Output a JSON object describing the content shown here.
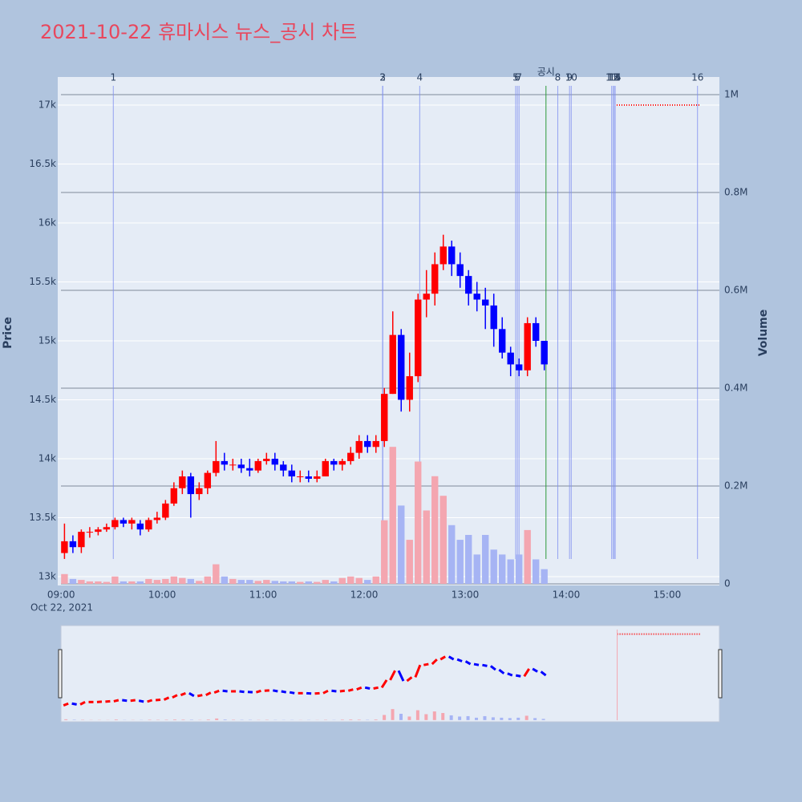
{
  "chart_data": {
    "type": "candlestick",
    "title": "2021-10-22 휴마시스 뉴스_공시 차트",
    "y_label": "Price",
    "y2_label": "Volume",
    "x_date_label": "Oct 22, 2021",
    "xlim": [
      "08:58",
      "15:31"
    ],
    "xticks": [
      "09:00",
      "10:00",
      "11:00",
      "12:00",
      "13:00",
      "14:00",
      "15:00"
    ],
    "ylim": [
      12925,
      17238
    ],
    "yticks": [
      {
        "value": 13000,
        "label": "13k"
      },
      {
        "value": 13500,
        "label": "13.5k"
      },
      {
        "value": 14000,
        "label": "14k"
      },
      {
        "value": 14500,
        "label": "14.5k"
      },
      {
        "value": 15000,
        "label": "15k"
      },
      {
        "value": 15500,
        "label": "15.5k"
      },
      {
        "value": 16000,
        "label": "16k"
      },
      {
        "value": 16500,
        "label": "16.5k"
      },
      {
        "value": 17000,
        "label": "17k"
      }
    ],
    "y2lim": [
      -3300,
      1036000
    ],
    "y2ticks": [
      0,
      {
        "value": 200000,
        "label": "0.2M"
      },
      {
        "value": 400000,
        "label": "0.4M"
      },
      {
        "value": 600000,
        "label": "0.6M"
      },
      {
        "value": 800000,
        "label": "0.8M"
      },
      {
        "value": 1000000,
        "label": "1M"
      }
    ],
    "up_color": "#ff0000",
    "down_color": "#0000ff",
    "up_volume_color": "#f4a6b0",
    "down_volume_color": "#a6b4f4",
    "x": [
      "09:00",
      "09:05",
      "09:10",
      "09:15",
      "09:20",
      "09:25",
      "09:30",
      "09:35",
      "09:40",
      "09:45",
      "09:50",
      "09:55",
      "10:00",
      "10:05",
      "10:10",
      "10:15",
      "10:20",
      "10:25",
      "10:30",
      "10:35",
      "10:40",
      "10:45",
      "10:50",
      "10:55",
      "11:00",
      "11:05",
      "11:10",
      "11:15",
      "11:20",
      "11:25",
      "11:30",
      "11:35",
      "11:40",
      "11:45",
      "11:50",
      "11:55",
      "12:00",
      "12:05",
      "12:10",
      "12:15",
      "12:20",
      "12:25",
      "12:30",
      "12:35",
      "12:40",
      "12:45",
      "12:50",
      "12:55",
      "13:00",
      "13:05",
      "13:10",
      "13:15",
      "13:20",
      "13:25",
      "13:30",
      "13:35",
      "13:40",
      "13:45"
    ],
    "open": [
      13200,
      13300,
      13250,
      13380,
      13380,
      13400,
      13420,
      13480,
      13450,
      13450,
      13400,
      13480,
      13500,
      13620,
      13750,
      13850,
      13700,
      13750,
      13880,
      13980,
      13950,
      13950,
      13920,
      13900,
      13980,
      14000,
      13950,
      13900,
      13850,
      13850,
      13830,
      13850,
      13980,
      13950,
      13980,
      14050,
      14150,
      14100,
      14150,
      14550,
      15050,
      14500,
      14700,
      15350,
      15400,
      15650,
      15800,
      15650,
      15550,
      15400,
      15350,
      15300,
      15100,
      14900,
      14800,
      14750,
      15150,
      15000
    ],
    "high": [
      13450,
      13350,
      13400,
      13420,
      13420,
      13450,
      13500,
      13500,
      13500,
      13480,
      13500,
      13550,
      13650,
      13800,
      13900,
      13880,
      13800,
      13900,
      14150,
      14050,
      14000,
      14000,
      14000,
      14000,
      14050,
      14050,
      13980,
      13950,
      13900,
      13900,
      13900,
      14000,
      14000,
      14000,
      14100,
      14200,
      14200,
      14200,
      14600,
      15250,
      15100,
      14900,
      15400,
      15600,
      15750,
      15900,
      15850,
      15750,
      15600,
      15500,
      15450,
      15400,
      15200,
      14950,
      14850,
      15200,
      15200,
      15000
    ],
    "low": [
      13150,
      13200,
      13200,
      13330,
      13350,
      13380,
      13400,
      13420,
      13400,
      13350,
      13380,
      13450,
      13480,
      13600,
      13700,
      13500,
      13650,
      13700,
      13850,
      13900,
      13900,
      13880,
      13850,
      13880,
      13950,
      13900,
      13850,
      13800,
      13800,
      13800,
      13800,
      13850,
      13900,
      13900,
      13950,
      14000,
      14050,
      14050,
      14100,
      14550,
      14400,
      14400,
      14650,
      15200,
      15300,
      15600,
      15550,
      15450,
      15300,
      15250,
      15100,
      14950,
      14850,
      14700,
      14700,
      14700,
      14950,
      14750
    ],
    "close": [
      13300,
      13250,
      13380,
      13380,
      13400,
      13420,
      13480,
      13450,
      13480,
      13400,
      13480,
      13500,
      13620,
      13750,
      13850,
      13700,
      13750,
      13880,
      13980,
      13950,
      13950,
      13920,
      13900,
      13980,
      14000,
      13950,
      13900,
      13850,
      13850,
      13830,
      13850,
      13980,
      13950,
      13980,
      14050,
      14150,
      14100,
      14150,
      14550,
      15050,
      14500,
      14700,
      15350,
      15400,
      15650,
      15800,
      15650,
      15550,
      15400,
      15350,
      15300,
      15100,
      14900,
      14800,
      14750,
      15150,
      15000,
      14800
    ],
    "volume": [
      20000,
      10000,
      8000,
      5000,
      5000,
      4000,
      15000,
      5000,
      5000,
      5000,
      10000,
      8000,
      10000,
      15000,
      12000,
      10000,
      6000,
      15000,
      40000,
      15000,
      10000,
      8000,
      8000,
      6000,
      8000,
      6000,
      5000,
      5000,
      4000,
      5000,
      4000,
      8000,
      5000,
      12000,
      15000,
      12000,
      8000,
      15000,
      130000,
      280000,
      160000,
      90000,
      250000,
      150000,
      220000,
      180000,
      120000,
      90000,
      100000,
      60000,
      100000,
      70000,
      60000,
      50000,
      60000,
      110000,
      50000,
      30000
    ],
    "after_hours": {
      "x": [
        "14:30",
        "15:20"
      ],
      "values": [
        17000,
        17000
      ],
      "color": "#ff0000"
    },
    "news_color": "#7f8ff0",
    "news": [
      {
        "label": "1",
        "time": "09:31"
      },
      {
        "label": "2",
        "time": "12:11"
      },
      {
        "label": "3",
        "time": "12:11"
      },
      {
        "label": "4",
        "time": "12:33"
      },
      {
        "label": "5",
        "time": "13:30"
      },
      {
        "label": "6",
        "time": "13:31"
      },
      {
        "label": "7",
        "time": "13:32"
      },
      {
        "label": "8",
        "time": "13:55"
      },
      {
        "label": "9",
        "time": "14:02"
      },
      {
        "label": "10",
        "time": "14:03"
      },
      {
        "label": "11",
        "time": "14:27"
      },
      {
        "label": "12",
        "time": "14:28"
      },
      {
        "label": "13",
        "time": "14:28"
      },
      {
        "label": "14",
        "time": "14:29"
      },
      {
        "label": "15",
        "time": "14:29"
      },
      {
        "label": "16",
        "time": "15:18"
      }
    ],
    "disclosure": {
      "label": "공시",
      "time": "13:48",
      "color": "#2e9a3a"
    }
  }
}
